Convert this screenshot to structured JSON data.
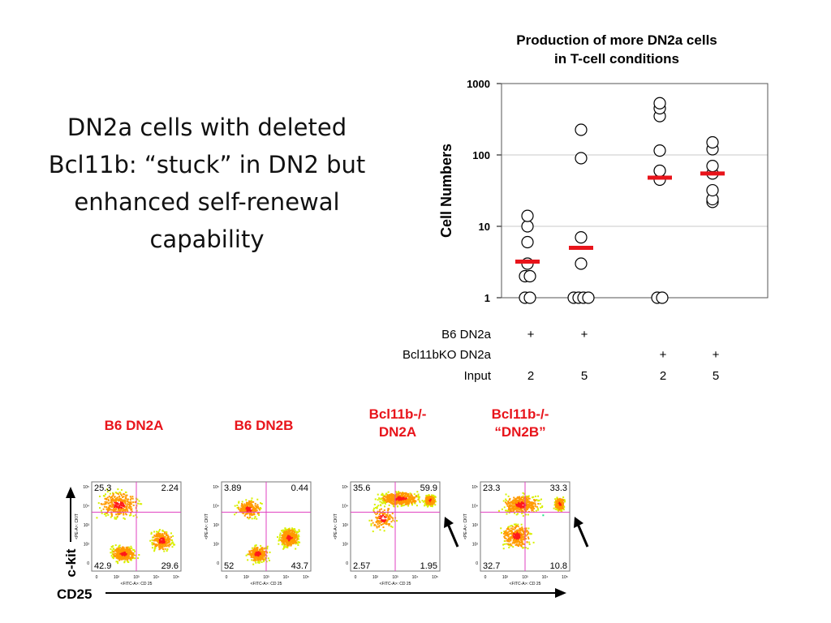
{
  "slide": {
    "title_lines": [
      "DN2a cells with deleted",
      "Bcl11b: “stuck” in DN2 but",
      "enhanced self-renewal",
      "capability"
    ]
  },
  "chart_data": {
    "type": "scatter",
    "title_lines": [
      "Production of more DN2a cells",
      "in T-cell conditions"
    ],
    "ylabel": "Cell Numbers",
    "yscale": "log",
    "ylim": [
      1,
      1000
    ],
    "y_ticks": [
      "1000",
      "100",
      "10",
      "1"
    ],
    "grid": true,
    "median_color": "#e8141b",
    "groups": [
      {
        "b6": "+",
        "ko": "",
        "input": "2",
        "points": [
          1,
          1,
          2,
          2,
          3,
          6,
          10,
          14
        ],
        "median": 3.2
      },
      {
        "b6": "+",
        "ko": "",
        "input": "5",
        "points": [
          1,
          1,
          1,
          1,
          3,
          7,
          90,
          225
        ],
        "median": 5
      },
      {
        "b6": "",
        "ko": "+",
        "input": "2",
        "points": [
          1,
          1,
          45,
          60,
          115,
          350,
          450,
          530
        ],
        "median": 48
      },
      {
        "b6": "",
        "ko": "+",
        "input": "5",
        "points": [
          22,
          24,
          32,
          55,
          70,
          120,
          150
        ],
        "median": 55
      }
    ],
    "row_labels": {
      "b6": "B6 DN2a",
      "ko": "Bcl11bKO DN2a",
      "input": "Input"
    }
  },
  "conditions": [
    {
      "lines": [
        "B6 DN2A"
      ],
      "color": "#e8141b"
    },
    {
      "lines": [
        "B6 DN2B"
      ],
      "color": "#e8141b"
    },
    {
      "lines": [
        "Bcl11b-/-",
        "DN2A"
      ],
      "color": "#e8141b"
    },
    {
      "lines": [
        "Bcl11b-/-",
        "“DN2B”"
      ],
      "color": "#e8141b"
    }
  ],
  "flow": {
    "y_axis_label": "c-kit",
    "x_axis_label": "CD25",
    "plot_ylabel": "<PE-A>: CKIT",
    "plot_xlabel": "<FITC-A>: CD 25",
    "x_ticks": [
      "0",
      "10²",
      "10³",
      "10⁴",
      "10⁵"
    ],
    "y_ticks": [
      "10⁵",
      "10⁴",
      "10³",
      "10²",
      "0"
    ],
    "plots": [
      {
        "ul": "25.3",
        "ur": "2.24",
        "ll": "42.9",
        "lr": "29.6",
        "arrow": false
      },
      {
        "ul": "3.89",
        "ur": "0.44",
        "ll": "52",
        "lr": "43.7",
        "arrow": false
      },
      {
        "ul": "35.6",
        "ur": "59.9",
        "ll": "2.57",
        "lr": "1.95",
        "arrow": true
      },
      {
        "ul": "23.3",
        "ur": "33.3",
        "ll": "32.7",
        "lr": "10.8",
        "arrow": true
      }
    ]
  }
}
